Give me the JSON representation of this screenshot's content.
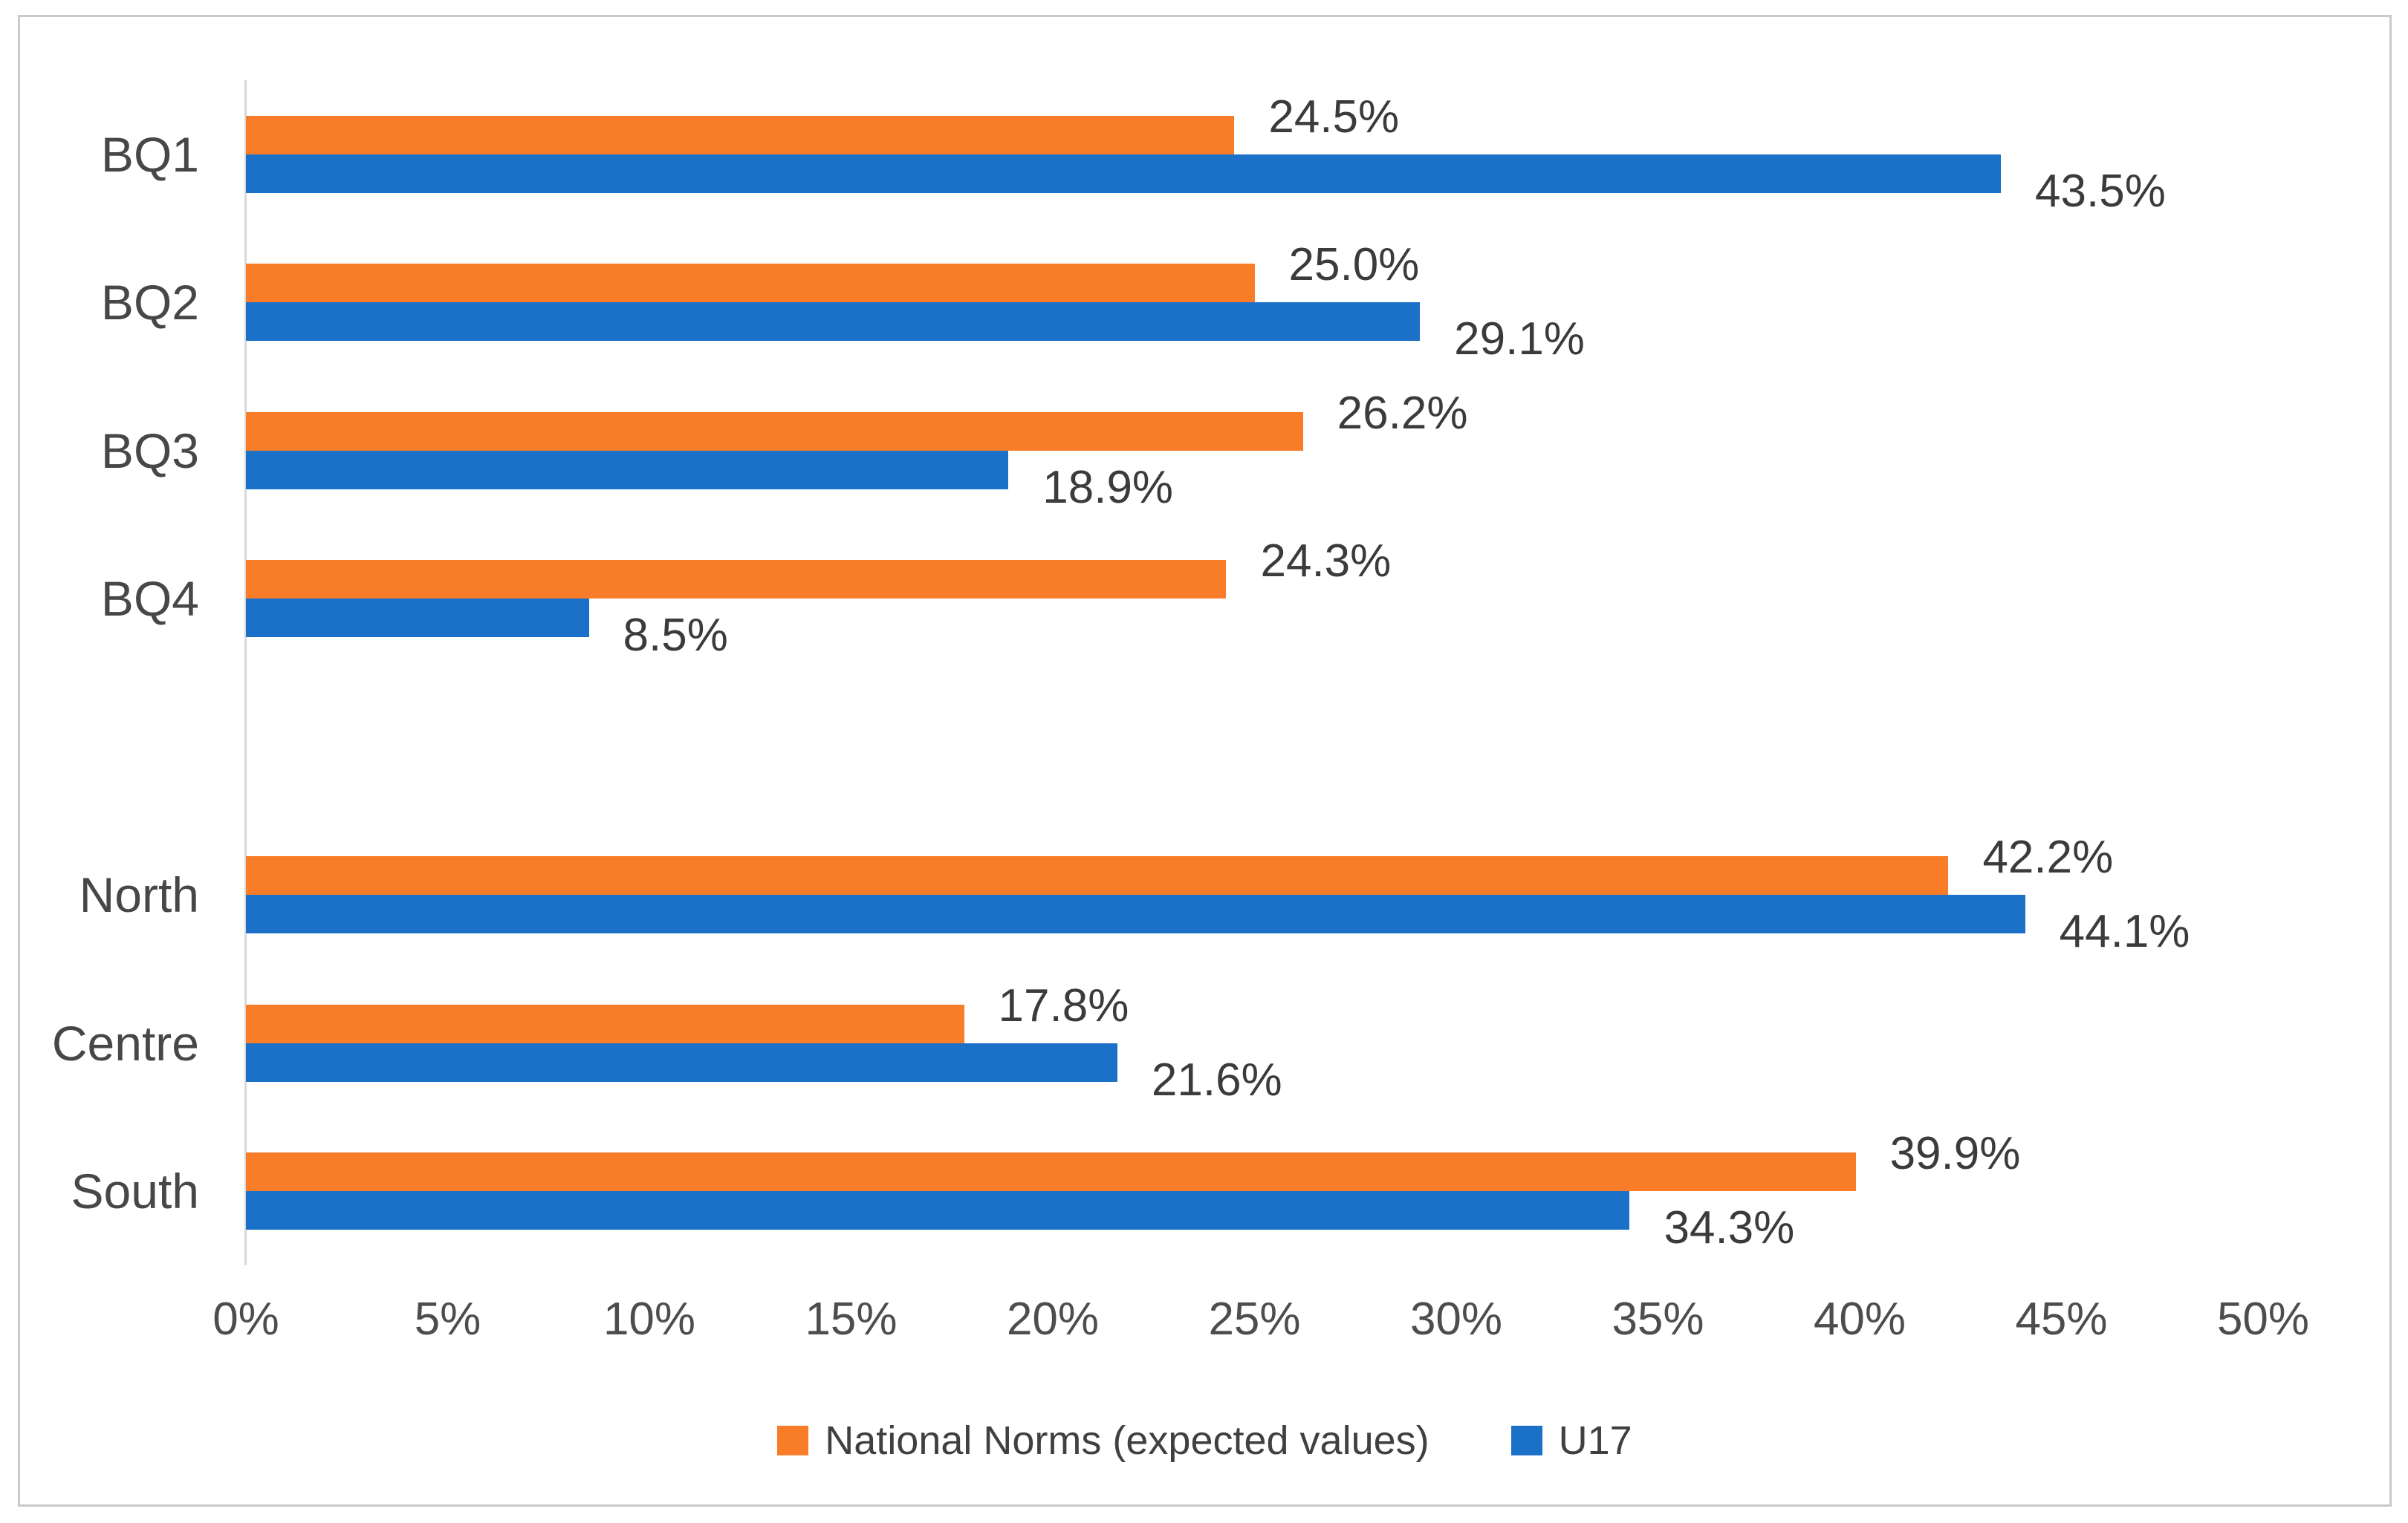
{
  "chart_data": {
    "type": "bar",
    "orientation": "horizontal",
    "title": "",
    "xlabel": "",
    "ylabel": "",
    "categories": [
      "BQ1",
      "BQ2",
      "BQ3",
      "BQ4",
      "",
      "North",
      "Centre",
      "South"
    ],
    "series": [
      {
        "name": "National Norms (expected values)",
        "color": "#f97d28",
        "values": [
          24.5,
          25.0,
          26.2,
          24.3,
          null,
          42.2,
          17.8,
          39.9
        ],
        "data_labels": [
          "24.5%",
          "25.0%",
          "26.2%",
          "24.3%",
          null,
          "42.2%",
          "17.8%",
          "39.9%"
        ]
      },
      {
        "name": "U17",
        "color": "#1b70c8",
        "values": [
          43.5,
          29.1,
          18.9,
          8.5,
          null,
          44.1,
          21.6,
          34.3
        ],
        "data_labels": [
          "43.5%",
          "29.1%",
          "18.9%",
          "8.5%",
          null,
          "44.1%",
          "21.6%",
          "34.3%"
        ]
      }
    ],
    "x_axis": {
      "min": 0,
      "max": 50,
      "step": 5,
      "tick_labels": [
        "0%",
        "5%",
        "10%",
        "15%",
        "20%",
        "25%",
        "30%",
        "35%",
        "40%",
        "45%",
        "50%"
      ]
    },
    "grid": false,
    "legend_position": "bottom",
    "data_label_position": "outside_end",
    "colors": {
      "axis_line": "#d9d9d9",
      "frame_border": "#c9c9c9",
      "text": "#3b3b3b",
      "background": "#ffffff"
    }
  }
}
